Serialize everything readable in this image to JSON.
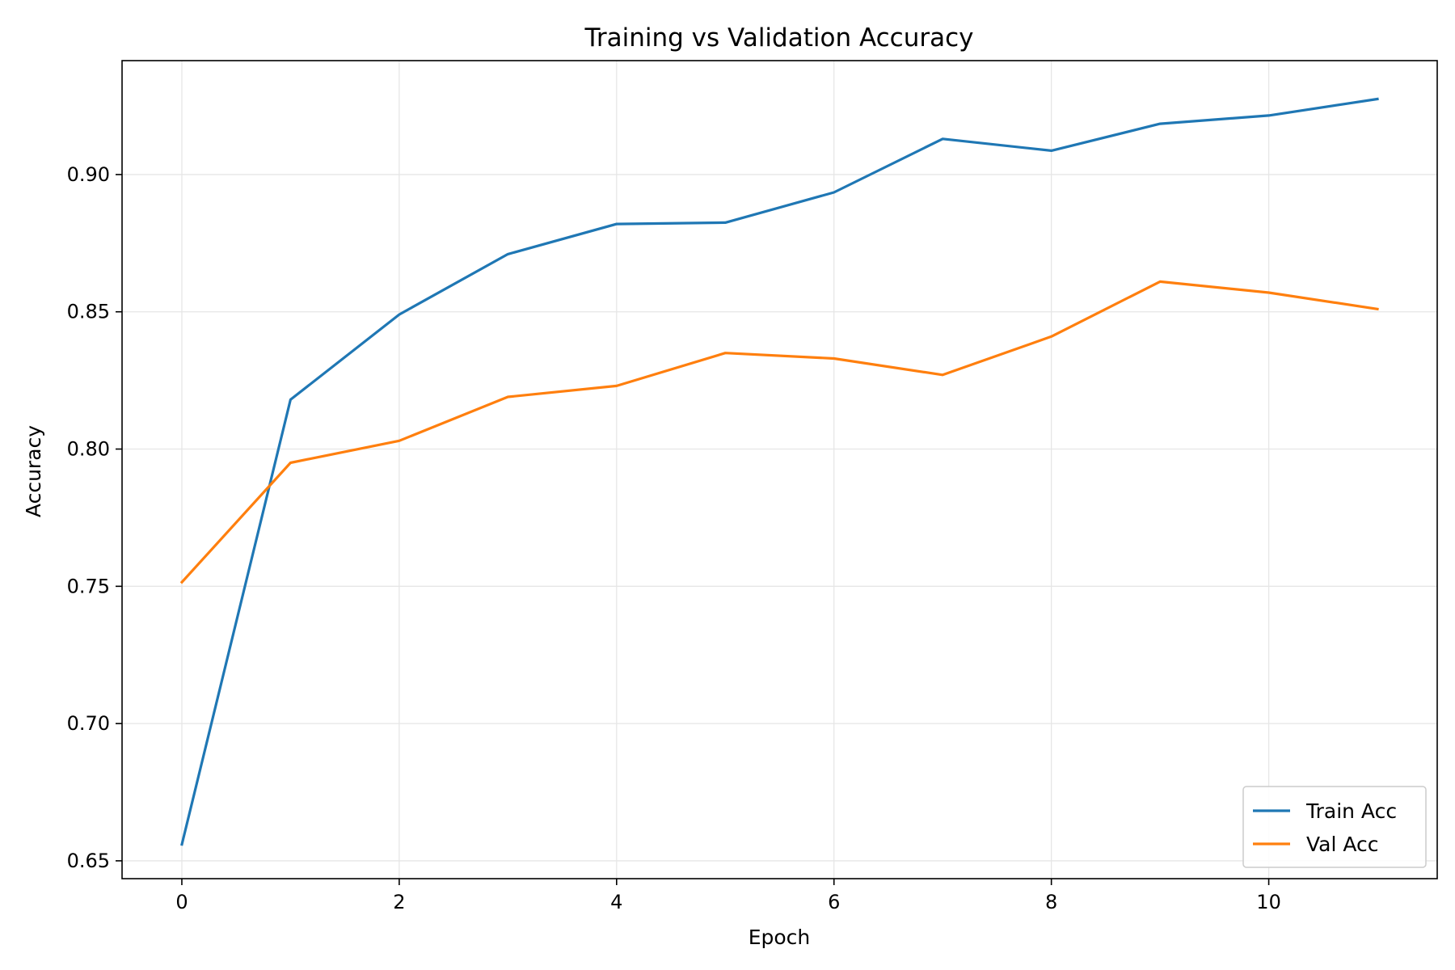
{
  "chart_data": {
    "type": "line",
    "title": "Training vs Validation Accuracy",
    "xlabel": "Epoch",
    "ylabel": "Accuracy",
    "x": [
      0,
      1,
      2,
      3,
      4,
      5,
      6,
      7,
      8,
      9,
      10,
      11
    ],
    "xlim": [
      -0.55,
      11.55
    ],
    "ylim": [
      0.6435,
      0.9415
    ],
    "x_ticks": [
      0,
      2,
      4,
      6,
      8,
      10
    ],
    "x_tick_labels": [
      "0",
      "2",
      "4",
      "6",
      "8",
      "10"
    ],
    "y_ticks": [
      0.65,
      0.7,
      0.75,
      0.8,
      0.85,
      0.9
    ],
    "y_tick_labels": [
      "0.65",
      "0.70",
      "0.75",
      "0.80",
      "0.85",
      "0.90"
    ],
    "grid": true,
    "legend_position": "lower-right",
    "series": [
      {
        "name": "Train Acc",
        "color": "#1f77b4",
        "values": [
          0.656,
          0.818,
          0.849,
          0.871,
          0.882,
          0.8825,
          0.8935,
          0.913,
          0.9087,
          0.9185,
          0.9215,
          0.9275
        ]
      },
      {
        "name": "Val Acc",
        "color": "#ff7f0e",
        "values": [
          0.7515,
          0.795,
          0.803,
          0.819,
          0.823,
          0.835,
          0.833,
          0.827,
          0.841,
          0.861,
          0.857,
          0.851
        ]
      }
    ]
  }
}
